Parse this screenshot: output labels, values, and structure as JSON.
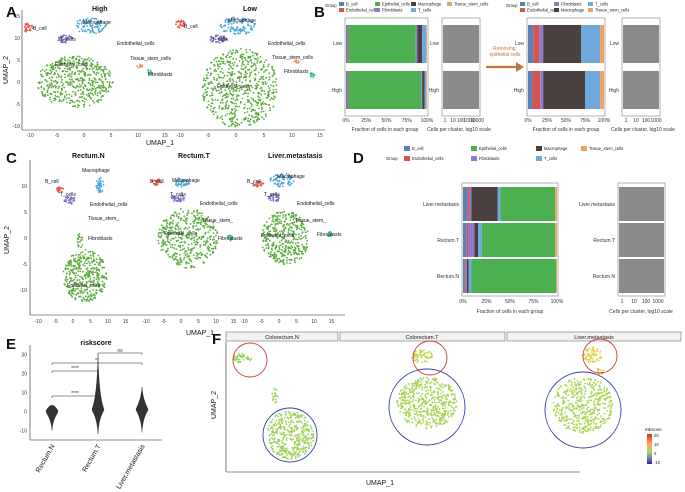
{
  "panels": {
    "A": {
      "letter": "A",
      "titles": [
        "High",
        "Low"
      ],
      "xlabel": "UMAP_1",
      "ylabel": "UMAP_2",
      "xticks": [
        "-10",
        "-5",
        "0",
        "5",
        "10",
        "15"
      ],
      "xticks2": [
        "-10",
        "-5",
        "0",
        "5",
        "10",
        "15"
      ],
      "yticks": [
        "15",
        "10",
        "5",
        "0",
        "-5",
        "-10"
      ],
      "labels": [
        "B_cell",
        "Macrophage",
        "T_cells",
        "Endothelial_cells",
        "Epithelial_cells",
        "Tissue_stem_cells",
        "Fibroblasts"
      ],
      "labels_low": [
        "B_cell",
        "Macrophage",
        "T_cells",
        "Endothelial_cells",
        "Tissue_stem_cells",
        "Fibroblasts",
        "Epithelial_cells"
      ]
    },
    "B": {
      "letter": "B",
      "legend_title": "Group",
      "legend_left": [
        "B_cell",
        "Endothelial_cells",
        "Epithelial_cells",
        "Fibroblasts",
        "Macrophage",
        "T_cells",
        "Tissue_stem_cells"
      ],
      "legend_right": [
        "B_cell",
        "Endothelial_cells",
        "Fibroblasts",
        "Macrophage",
        "T_cells",
        "Tissue_stem_cells"
      ],
      "rows": [
        "Low",
        "High"
      ],
      "xlabel_frac": "Fraction of cells in each group",
      "xlabel_cells": "Cells per cluster, log10 scale",
      "frac_ticks": [
        "0%",
        "25%",
        "50%",
        "75%",
        "100%"
      ],
      "log_ticks": [
        "1",
        "10",
        "100",
        "1000",
        "10000"
      ],
      "log_ticks_right": [
        "1",
        "10",
        "100",
        "1000"
      ],
      "arrow_label": "Removing epithelial cells"
    },
    "C": {
      "letter": "C",
      "titles": [
        "Rectum.N",
        "Rectum.T",
        "Liver.metastasis"
      ],
      "xlabel": "UMAP_1",
      "ylabel": "UMAP_2",
      "xticks": [
        "-10",
        "-5",
        "0",
        "5",
        "10",
        "15"
      ],
      "yticks": [
        "10",
        "5",
        "0",
        "-5",
        "-10"
      ],
      "labels": [
        "B_cell",
        "Macrophage",
        "T_cells",
        "Endothelial_cells",
        "Tissue_stem_",
        "Fibroblasts",
        "Epithelial_cells"
      ]
    },
    "D": {
      "letter": "D",
      "legend_title": "Group",
      "legend": [
        "B_cell",
        "Epithelial_cells",
        "Macrophage",
        "Tissue_stem_cells",
        "Endothelial_cells",
        "Fibroblasts",
        "T_cells"
      ],
      "rows": [
        "Liver.metastasis",
        "Rectum.T",
        "Rectum.N"
      ],
      "xlabel_frac": "Fraction of cells in each group",
      "xlabel_cells": "Cells per cluster, log10 scale",
      "frac_ticks": [
        "0%",
        "25%",
        "50%",
        "75%",
        "100%"
      ],
      "log_ticks": [
        "1",
        "10",
        "100",
        "1000"
      ]
    },
    "E": {
      "letter": "E",
      "title": "riskscore",
      "yticks": [
        "30",
        "20",
        "10",
        "0",
        "-10"
      ],
      "groups": [
        "Rectum.N",
        "Rectum.T",
        "Liver.metastasis"
      ],
      "sig": [
        "****",
        "****",
        "**",
        "ns"
      ]
    },
    "F": {
      "letter": "F",
      "facets": [
        "Colorectum.N",
        "Colorectum.T",
        "Liver.metastasis"
      ],
      "xlabel": "UMAP_1",
      "ylabel": "UMAP_2",
      "legend_title": "riskscore",
      "legend_ticks": [
        "20",
        "10",
        "0",
        "-10"
      ]
    }
  },
  "colors": {
    "b_cell": "#e8574a",
    "endothelial": "#e8574a",
    "epithelial": "#5aab3a",
    "fibroblast": "#2fb5a0",
    "macrophage": "#4aa6d6",
    "t_cells": "#7b6fc7",
    "tissue_stem": "#f08c5a",
    "bar_b": "#5b80b8",
    "bar_endo": "#d9534f",
    "bar_epi": "#4caf50",
    "bar_fib": "#8c7bd1",
    "bar_mac": "#4a4040",
    "bar_t": "#6fa8dc",
    "bar_stem": "#f0a060",
    "gray": "#8a8a8a",
    "arrow": "#c0743a",
    "red_circle": "#d23a3a",
    "blue_circle": "#3040a8"
  },
  "chart_data": [
    {
      "type": "bar",
      "title": "B: Fraction of cells in each group (all cells)",
      "categories": [
        "Low",
        "High"
      ],
      "series": [
        {
          "name": "B_cell",
          "values": [
            0.02,
            0.02
          ]
        },
        {
          "name": "Endothelial_cells",
          "values": [
            0.01,
            0.01
          ]
        },
        {
          "name": "Epithelial_cells",
          "values": [
            0.83,
            0.9
          ]
        },
        {
          "name": "Fibroblasts",
          "values": [
            0.02,
            0.01
          ]
        },
        {
          "name": "Macrophage",
          "values": [
            0.06,
            0.03
          ]
        },
        {
          "name": "T_cells",
          "values": [
            0.05,
            0.02
          ]
        },
        {
          "name": "Tissue_stem_cells",
          "values": [
            0.01,
            0.01
          ]
        }
      ],
      "xlabel": "Fraction of cells in each group",
      "ylim": [
        0,
        1
      ]
    },
    {
      "type": "bar",
      "title": "B: Fraction of cells in each group (epithelial removed)",
      "categories": [
        "Low",
        "High"
      ],
      "series": [
        {
          "name": "B_cell",
          "values": [
            0.07,
            0.06
          ]
        },
        {
          "name": "Endothelial_cells",
          "values": [
            0.08,
            0.1
          ]
        },
        {
          "name": "Fibroblasts",
          "values": [
            0.05,
            0.04
          ]
        },
        {
          "name": "Macrophage",
          "values": [
            0.5,
            0.55
          ]
        },
        {
          "name": "T_cells",
          "values": [
            0.25,
            0.2
          ]
        },
        {
          "name": "Tissue_stem_cells",
          "values": [
            0.05,
            0.05
          ]
        }
      ],
      "xlabel": "Fraction of cells in each group",
      "ylim": [
        0,
        1
      ]
    },
    {
      "type": "bar",
      "title": "D: Fraction of cells in each group",
      "categories": [
        "Liver.metastasis",
        "Rectum.T",
        "Rectum.N"
      ],
      "series": [
        {
          "name": "B_cell",
          "values": [
            0.05,
            0.04,
            0.02
          ]
        },
        {
          "name": "Endothelial_cells",
          "values": [
            0.02,
            0.02,
            0.01
          ]
        },
        {
          "name": "Fibroblasts",
          "values": [
            0.02,
            0.06,
            0.01
          ]
        },
        {
          "name": "Macrophage",
          "values": [
            0.28,
            0.04,
            0.02
          ]
        },
        {
          "name": "T_cells",
          "values": [
            0.03,
            0.04,
            0.03
          ]
        },
        {
          "name": "Epithelial_cells",
          "values": [
            0.58,
            0.78,
            0.9
          ]
        },
        {
          "name": "Tissue_stem_cells",
          "values": [
            0.02,
            0.02,
            0.01
          ]
        }
      ],
      "xlabel": "Fraction of cells in each group",
      "ylim": [
        0,
        1
      ]
    },
    {
      "type": "violin",
      "title": "riskscore",
      "categories": [
        "Rectum.N",
        "Rectum.T",
        "Liver.metastasis"
      ],
      "ylim": [
        -15,
        35
      ],
      "values": [
        {
          "min": -10,
          "max": 3,
          "median": 0
        },
        {
          "min": -12,
          "max": 30,
          "median": 1
        },
        {
          "min": -11,
          "max": 13,
          "median": 1
        }
      ]
    }
  ]
}
